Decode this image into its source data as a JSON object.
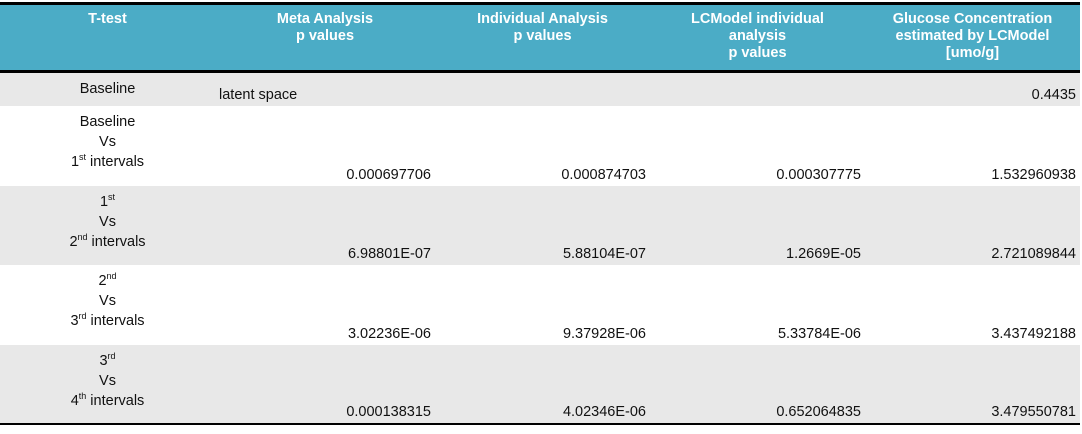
{
  "table": {
    "header": [
      [
        "T-test"
      ],
      [
        "Meta Analysis",
        "p values"
      ],
      [
        "Individual Analysis",
        "p values"
      ],
      [
        "LCModel individual",
        "analysis",
        "p values"
      ],
      [
        "Glucose Concentration",
        "estimated by LCModel",
        "[umo/g]"
      ]
    ],
    "rows": [
      {
        "label": [
          [
            "Baseline"
          ]
        ],
        "cells": [
          "latent space",
          null,
          null,
          "0.4435"
        ]
      },
      {
        "label": [
          [
            "Baseline"
          ],
          [
            "Vs"
          ],
          [
            "1",
            {
              "sup": "st"
            },
            " intervals"
          ]
        ],
        "cells": [
          "0.000697706",
          "0.000874703",
          "0.000307775",
          "1.532960938"
        ]
      },
      {
        "label": [
          [
            "1",
            {
              "sup": "st"
            }
          ],
          [
            "Vs"
          ],
          [
            "2",
            {
              "sup": "nd"
            },
            " intervals"
          ]
        ],
        "cells": [
          "6.98801E-07",
          "5.88104E-07",
          "1.2669E-05",
          "2.721089844"
        ]
      },
      {
        "label": [
          [
            "2",
            {
              "sup": "nd"
            }
          ],
          [
            "Vs"
          ],
          [
            "3",
            {
              "sup": "rd"
            },
            " intervals"
          ]
        ],
        "cells": [
          "3.02236E-06",
          "9.37928E-06",
          "5.33784E-06",
          "3.437492188"
        ]
      },
      {
        "label": [
          [
            "3",
            {
              "sup": "rd"
            }
          ],
          [
            "Vs"
          ],
          [
            "4",
            {
              "sup": "th"
            },
            " intervals"
          ]
        ],
        "cells": [
          "0.000138315",
          "4.02346E-06",
          "0.652064835",
          "3.479550781"
        ]
      }
    ]
  }
}
